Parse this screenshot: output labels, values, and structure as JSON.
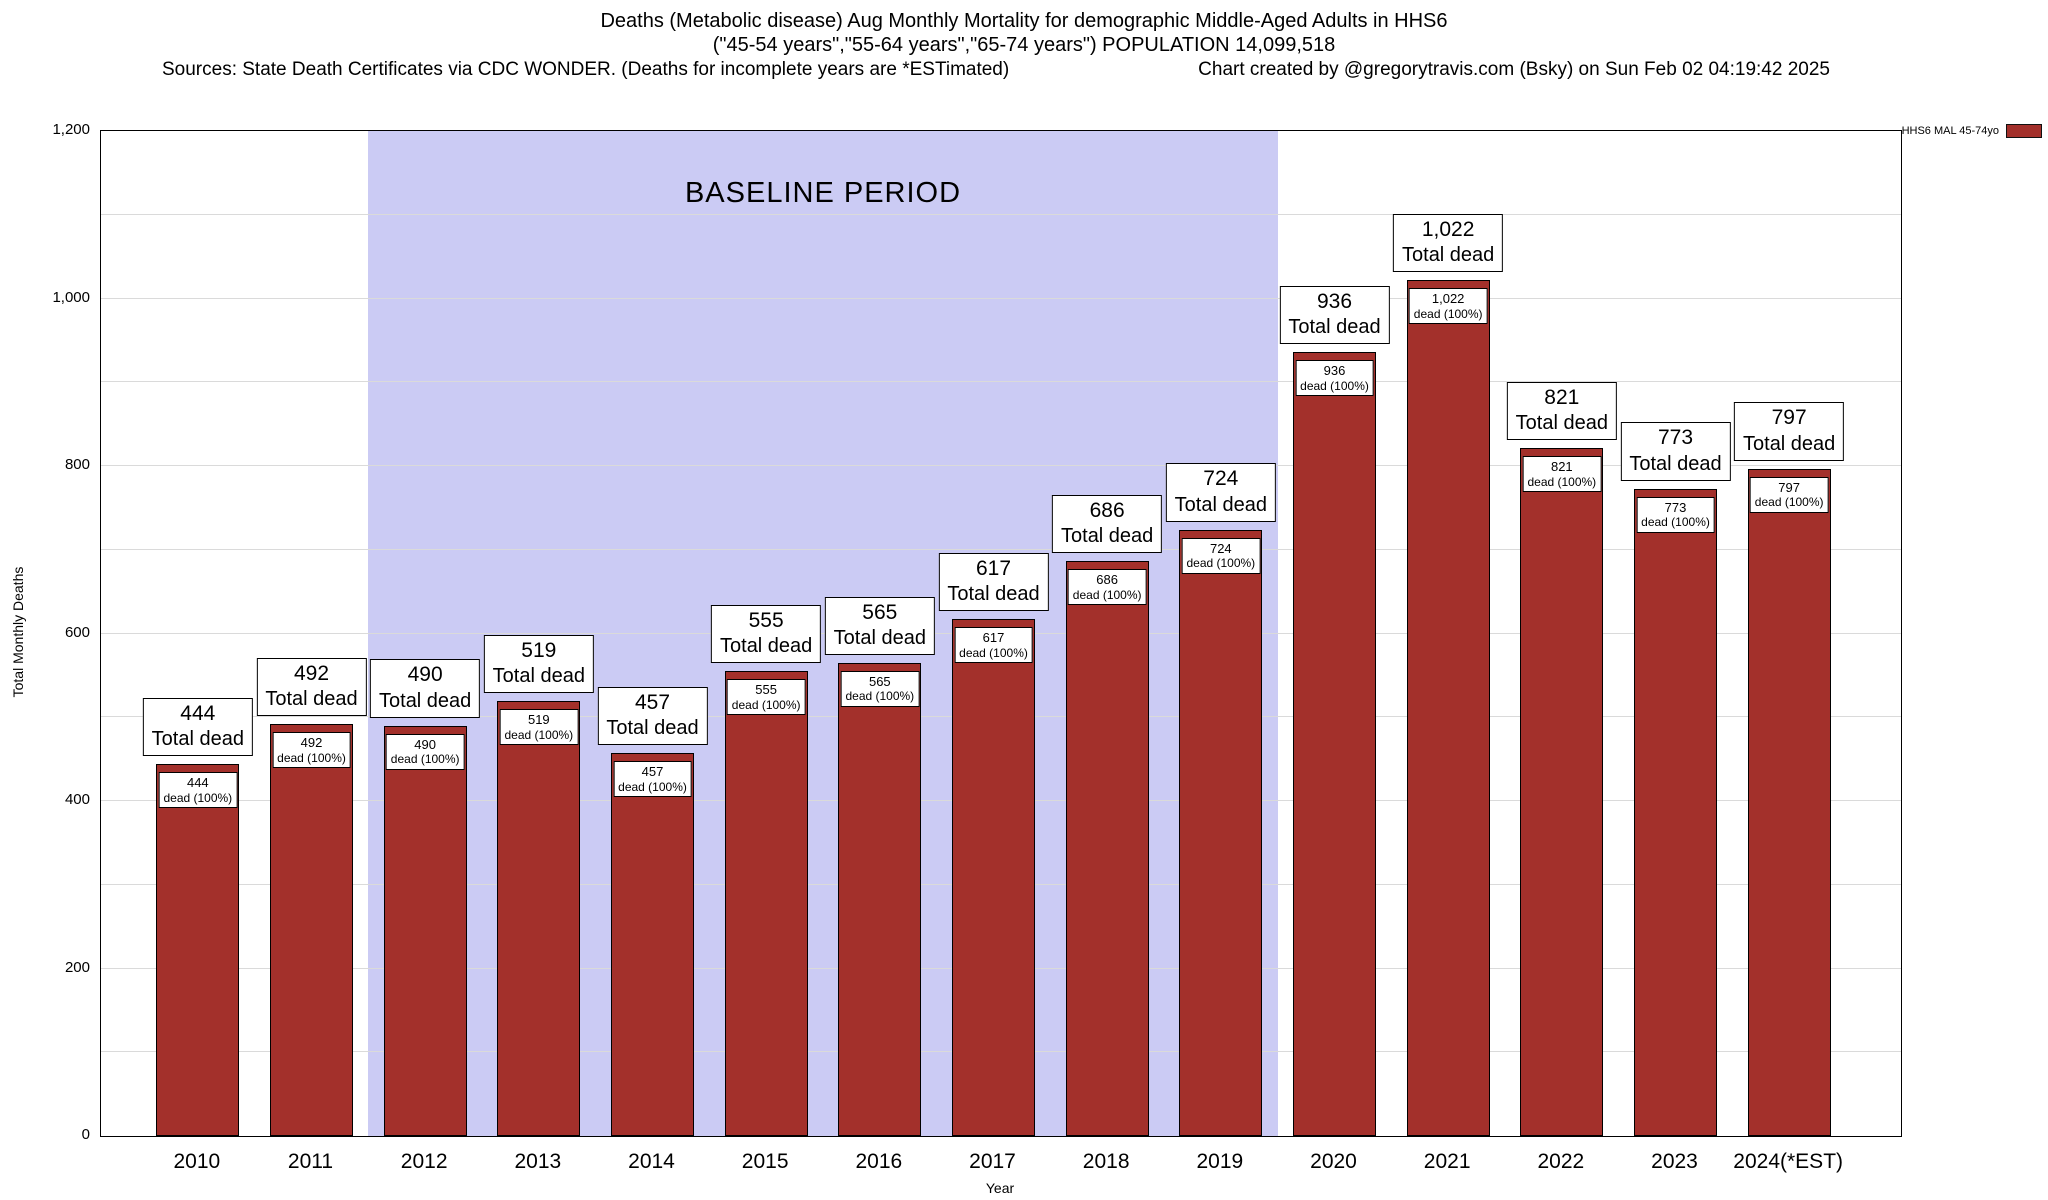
{
  "header": {
    "title_line1": "Deaths (Metabolic disease) Aug Monthly Mortality for demographic Middle-Aged Adults in HHS6",
    "title_line2": "(\"45-54 years\",\"55-64 years\",\"65-74 years\") POPULATION 14,099,518",
    "sources": "Sources: State Death Certificates via CDC WONDER. (Deaths for incomplete years are *ESTimated)",
    "credit": "Chart created by @gregorytravis.com (Bsky) on Sun Feb 02 04:19:42 2025"
  },
  "chart_data": {
    "type": "bar",
    "title": "Deaths (Metabolic disease) Aug Monthly Mortality for demographic Middle-Aged Adults in HHS6",
    "xlabel": "Year",
    "ylabel": "Total Monthly Deaths",
    "ylim": [
      0,
      1200
    ],
    "yticks": [
      0,
      200,
      400,
      600,
      800,
      1000,
      1200
    ],
    "grid": true,
    "categories": [
      "2010",
      "2011",
      "2012",
      "2013",
      "2014",
      "2015",
      "2016",
      "2017",
      "2018",
      "2019",
      "2020",
      "2021",
      "2022",
      "2023",
      "2024(*EST)"
    ],
    "values": [
      444,
      492,
      490,
      519,
      457,
      555,
      565,
      617,
      686,
      724,
      936,
      1022,
      821,
      773,
      797
    ],
    "bar_color": "#a3302b",
    "bar_border_color": "#000000",
    "annotations": {
      "above_label_suffix": "Total dead",
      "inner_label_suffix": "dead (100%)"
    },
    "baseline_region": {
      "label": "BASELINE PERIOD",
      "start_category": "2012",
      "end_category": "2019",
      "color": "#cbcbf4"
    },
    "legend": {
      "label": "HHS6 MAL 45-74yo",
      "swatch_color": "#a3302b",
      "position": "top-right"
    }
  }
}
